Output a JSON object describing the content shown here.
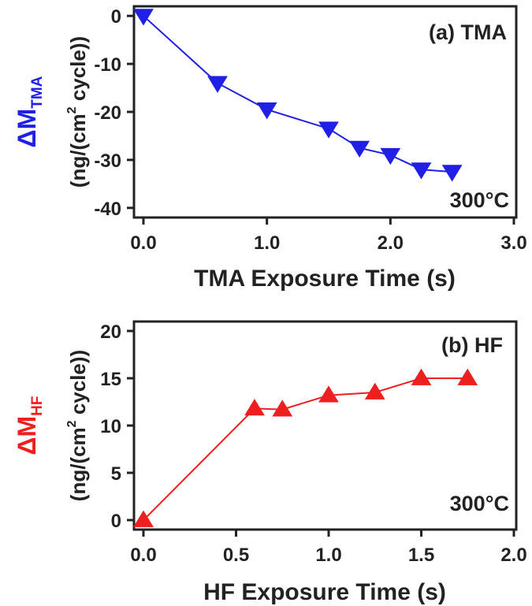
{
  "colors": {
    "tma": "#1f1fe6",
    "hf": "#ee1f1f",
    "axis": "#222222"
  },
  "chart_data": [
    {
      "type": "line",
      "marker": "triangle-down",
      "annotation": "(a) TMA",
      "temperature_label": "300°C",
      "xlabel": "TMA Exposure Time (s)",
      "ylabel_symbol": "ΔM",
      "ylabel_subscript": "TMA",
      "ylabel_units_pre": "(ng/(cm",
      "ylabel_units_sup": "2",
      "ylabel_units_post": " cycle))",
      "xlim": [
        0,
        3
      ],
      "ylim": [
        -42,
        2
      ],
      "xticks": [
        "0.0",
        "1.0",
        "2.0",
        "3.0"
      ],
      "xtick_values": [
        0,
        1,
        2,
        3
      ],
      "yticks": [
        "0",
        "-10",
        "-20",
        "-30",
        "-40"
      ],
      "ytick_values": [
        0,
        -10,
        -20,
        -30,
        -40
      ],
      "series": [
        {
          "x": [
            0,
            0.6,
            1.0,
            1.5,
            1.75,
            2.0,
            2.25,
            2.5
          ],
          "y": [
            0,
            -14,
            -19.5,
            -23.5,
            -27.5,
            -29,
            -32,
            -32.5
          ]
        }
      ]
    },
    {
      "type": "line",
      "marker": "triangle-up",
      "annotation": "(b) HF",
      "temperature_label": "300°C",
      "xlabel": "HF Exposure Time (s)",
      "ylabel_symbol": "ΔM",
      "ylabel_subscript": "HF",
      "ylabel_units_pre": "(ng/(cm",
      "ylabel_units_sup": "2",
      "ylabel_units_post": " cycle))",
      "xlim": [
        0,
        2
      ],
      "ylim": [
        -1,
        21
      ],
      "xticks": [
        "0.0",
        "0.5",
        "1.0",
        "1.5",
        "2.0"
      ],
      "xtick_values": [
        0,
        0.5,
        1,
        1.5,
        2
      ],
      "yticks": [
        "0",
        "5",
        "10",
        "15",
        "20"
      ],
      "ytick_values": [
        0,
        5,
        10,
        15,
        20
      ],
      "series": [
        {
          "x": [
            0,
            0.6,
            0.75,
            1.0,
            1.25,
            1.5,
            1.75
          ],
          "y": [
            0,
            11.8,
            11.7,
            13.2,
            13.5,
            15,
            15
          ]
        }
      ]
    }
  ]
}
